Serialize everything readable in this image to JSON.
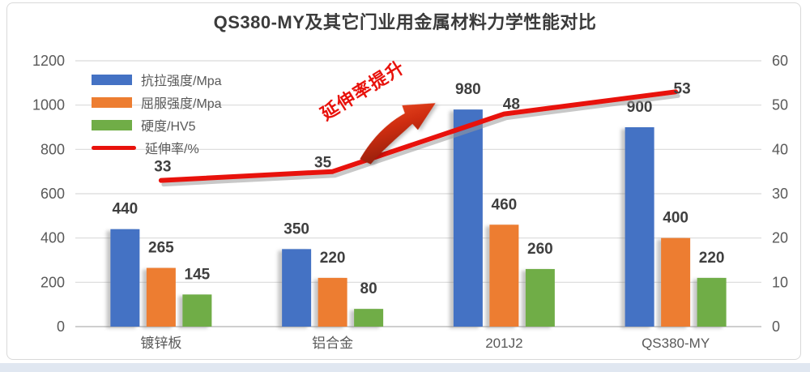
{
  "chart_data": {
    "type": "combo-bar-line",
    "title": "QS380-MY及其它门业用金属材料力学性能对比",
    "categories": [
      "镀锌板",
      "铝合金",
      "201J2",
      "QS380-MY"
    ],
    "category_ids": [
      "galvanized-sheet",
      "aluminum-alloy",
      "201j2",
      "qs380-my"
    ],
    "series": [
      {
        "id": "tensile-strength",
        "name": "抗拉强度/Mpa",
        "chart": "bar",
        "axis": "left",
        "color": "#4472c4",
        "values": [
          440,
          350,
          980,
          900
        ]
      },
      {
        "id": "yield-strength",
        "name": "屈服强度/Mpa",
        "chart": "bar",
        "axis": "left",
        "color": "#ed7d31",
        "values": [
          265,
          220,
          460,
          400
        ]
      },
      {
        "id": "hardness",
        "name": "硬度/HV5",
        "chart": "bar",
        "axis": "left",
        "color": "#70ad47",
        "values": [
          145,
          80,
          260,
          220
        ]
      },
      {
        "id": "elongation",
        "name": "延伸率/%",
        "chart": "line",
        "axis": "right",
        "color": "#e8120c",
        "values": [
          33,
          35,
          48,
          53
        ]
      }
    ],
    "left_axis": {
      "min": 0,
      "max": 1200,
      "step": 200,
      "ticks": [
        "0",
        "200",
        "400",
        "600",
        "800",
        "1000",
        "1200"
      ]
    },
    "right_axis": {
      "min": 0,
      "max": 60,
      "step": 10,
      "ticks": [
        "0",
        "10",
        "20",
        "30",
        "40",
        "50",
        "60"
      ]
    },
    "annotation": {
      "text": "延伸率提升",
      "color": "#e8120c"
    },
    "legend_position": "top-left-inside",
    "grid": true,
    "style": {
      "gridline": "#d9d9d9",
      "axis_line": "#bfbfbf",
      "tick_text": "#595959",
      "data_label_text": "#3f3f3f",
      "category_text": "#595959",
      "frame_border": "#d9d9d9",
      "background": "#ffffff",
      "bottom_strip": "#e0e7f1"
    }
  }
}
